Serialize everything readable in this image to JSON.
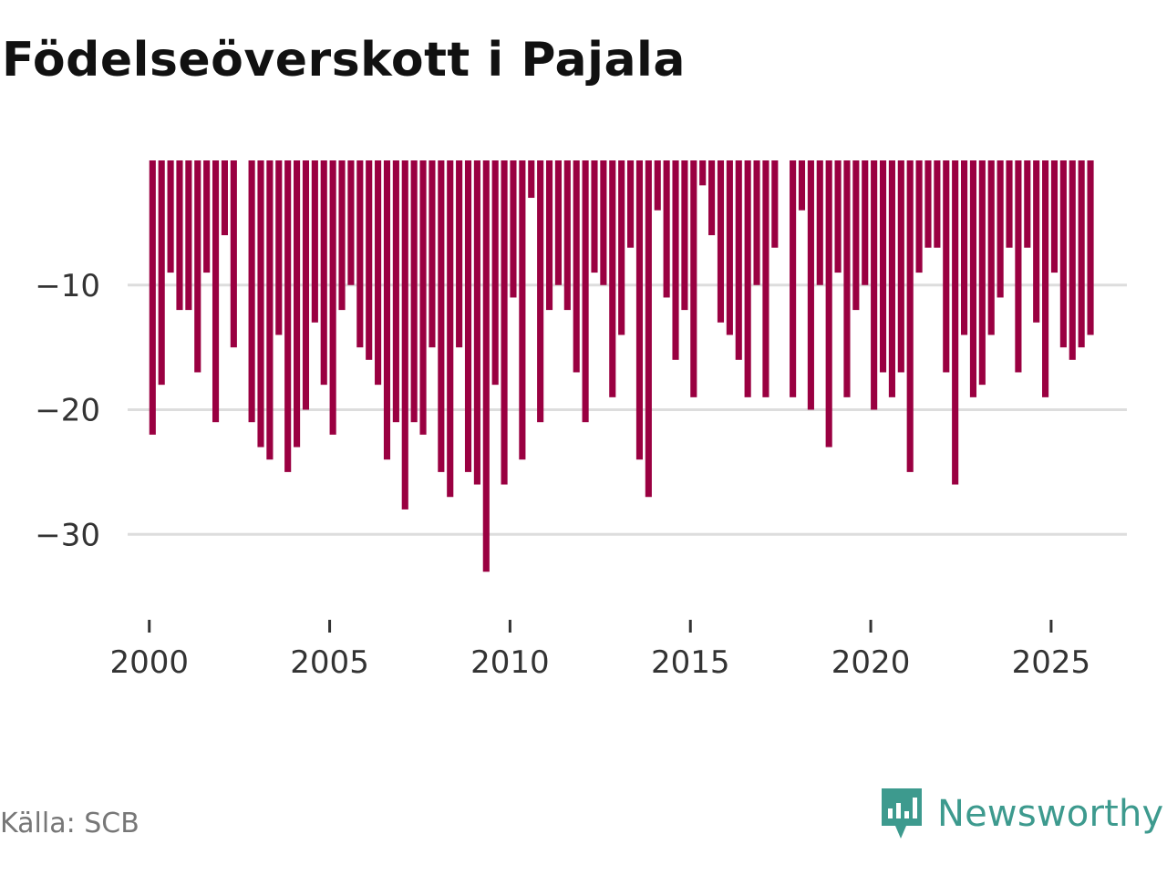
{
  "title": "Födelseöverskott i Pajala",
  "source": "Källa: SCB",
  "brand": {
    "name": "Newsworthy",
    "icon": "newsworthy-logo-icon"
  },
  "colors": {
    "bar": "#9a0041",
    "grid": "#dddddd",
    "axis_text": "#333333",
    "brand": "#3d9a8e"
  },
  "chart_data": {
    "type": "bar",
    "title": "Födelseöverskott i Pajala",
    "xlabel": "",
    "ylabel": "",
    "x_start": 2000.0,
    "x_step": 0.25,
    "values": [
      -22,
      -18,
      -9,
      -12,
      -12,
      -17,
      -9,
      -21,
      -6,
      -15,
      null,
      -21,
      -23,
      -24,
      -14,
      -25,
      -23,
      -20,
      -13,
      -18,
      -22,
      -12,
      -10,
      -15,
      -16,
      -18,
      -24,
      -21,
      -28,
      -21,
      -22,
      -15,
      -25,
      -27,
      -15,
      -25,
      -26,
      -33,
      -18,
      -26,
      -11,
      -24,
      -3,
      -21,
      -12,
      -10,
      -12,
      -17,
      -21,
      -9,
      -10,
      -19,
      -14,
      -7,
      -24,
      -27,
      -4,
      -11,
      -16,
      -12,
      -19,
      -2,
      -6,
      -13,
      -14,
      -16,
      -19,
      -10,
      -19,
      -7,
      null,
      -19,
      -4,
      -20,
      -10,
      -23,
      -9,
      -19,
      -12,
      -10,
      -20,
      -17,
      -19,
      -17,
      -25,
      -9,
      -7,
      -7,
      -17,
      -26,
      -14,
      -19,
      -18,
      -14,
      -11,
      -7,
      -17,
      -7,
      -13,
      -19,
      -9,
      -15,
      -16,
      -15,
      -14
    ],
    "y_ticks": [
      -10,
      -20,
      -30
    ],
    "y_tick_labels": [
      "−10",
      "−20",
      "−30"
    ],
    "ylim": [
      -37,
      0
    ],
    "x_ticks": [
      2000,
      2005,
      2010,
      2015,
      2020,
      2025
    ],
    "x_tick_labels": [
      "2000",
      "2005",
      "2010",
      "2015",
      "2020",
      "2025"
    ],
    "xlim": [
      1999.4,
      2027.1
    ],
    "grid": true,
    "legend": "none"
  }
}
